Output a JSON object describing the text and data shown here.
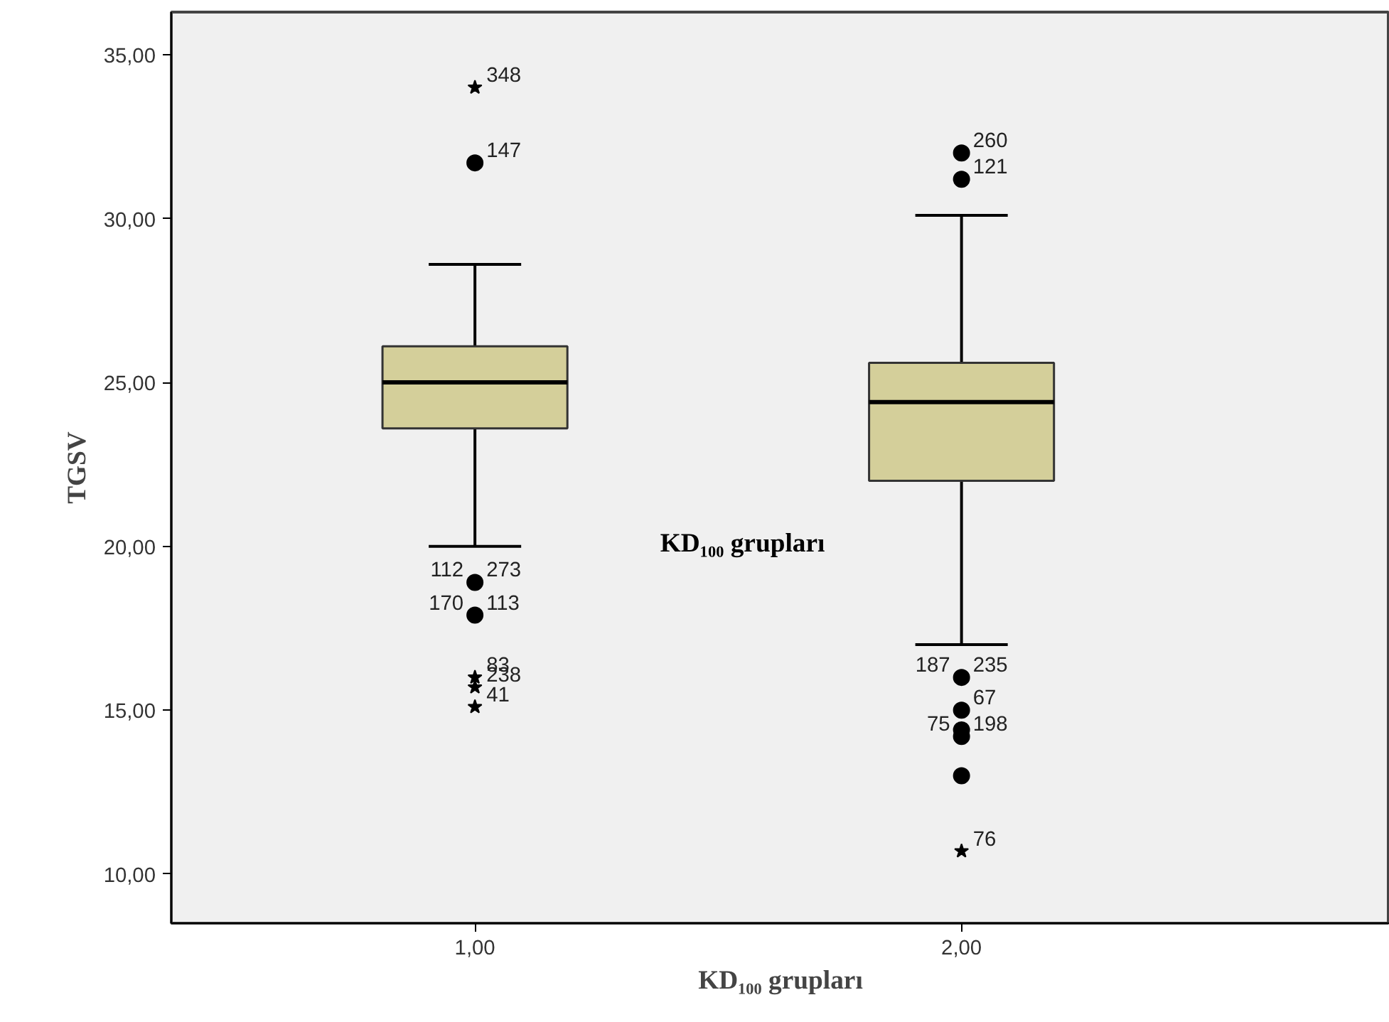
{
  "chart_data": {
    "type": "box",
    "xlabel": "KD₁₀₀ grupları",
    "ylabel": "TGSV",
    "categories": [
      "1,00",
      "2,00"
    ],
    "color": "#d4cf9a",
    "boxes": [
      {
        "low": 20.0,
        "q1": 23.6,
        "median": 25.0,
        "q3": 26.1,
        "high": 28.6
      },
      {
        "low": 17.0,
        "q1": 22.0,
        "median": 24.4,
        "q3": 25.6,
        "high": 30.1
      }
    ],
    "series": [
      {
        "type": "scatter",
        "marker": "circle",
        "color": "#000000",
        "x": [
          "1,00",
          "1,00",
          "1,00",
          "2,00",
          "2,00",
          "2,00",
          "2,00",
          "2,00",
          "2,00",
          "2,00"
        ],
        "values": [
          31.7,
          18.9,
          17.9,
          32.0,
          31.2,
          16.0,
          15.0,
          14.4,
          14.2,
          13.0
        ]
      },
      {
        "type": "scatter",
        "marker": "star",
        "color": "#000000",
        "x": [
          "1,00",
          "1,00",
          "1,00",
          "1,00",
          "2,00"
        ],
        "values": [
          34.0,
          16.0,
          15.7,
          15.1,
          10.7
        ]
      }
    ],
    "ylim": [
      8.5,
      36.3
    ],
    "yticks": [
      {
        "value": 10,
        "label": "10,00"
      },
      {
        "value": 15,
        "label": "15,00"
      },
      {
        "value": 20,
        "label": "20,00"
      },
      {
        "value": 25,
        "label": "25,00"
      },
      {
        "value": 30,
        "label": "30,00"
      },
      {
        "value": 35,
        "label": "35,00"
      }
    ],
    "grid": false,
    "annotations": [
      {
        "text": "348",
        "x": "1,00",
        "y": 34.0
      },
      {
        "text": "147",
        "x": "1,00",
        "y": 31.7
      },
      {
        "text": "112",
        "x": "1,00",
        "y": 18.9
      },
      {
        "text": "273",
        "x": "1,00",
        "y": 18.9
      },
      {
        "text": "170",
        "x": "1,00",
        "y": 17.9
      },
      {
        "text": "113",
        "x": "1,00",
        "y": 17.9
      },
      {
        "text": "83",
        "x": "1,00",
        "y": 16.0
      },
      {
        "text": "238",
        "x": "1,00",
        "y": 15.7
      },
      {
        "text": "41",
        "x": "1,00",
        "y": 15.1
      },
      {
        "text": "260",
        "x": "2,00",
        "y": 32.0
      },
      {
        "text": "121",
        "x": "2,00",
        "y": 31.2
      },
      {
        "text": "187",
        "x": "2,00",
        "y": 16.0
      },
      {
        "text": "235",
        "x": "2,00",
        "y": 16.0
      },
      {
        "text": "67",
        "x": "2,00",
        "y": 15.0
      },
      {
        "text": "75",
        "x": "2,00",
        "y": 14.2
      },
      {
        "text": "198",
        "x": "2,00",
        "y": 14.2
      },
      {
        "text": "76",
        "x": "2,00",
        "y": 10.7
      },
      "KD₁₀₀ grupları"
    ]
  }
}
